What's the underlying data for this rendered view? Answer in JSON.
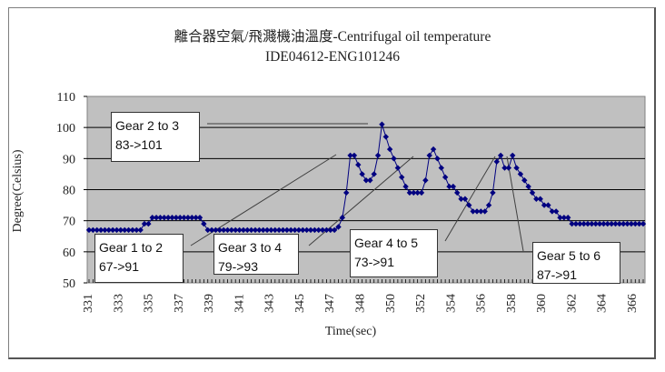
{
  "chart_data": {
    "type": "line",
    "title": "離合器空氣/飛濺機油溫度-Centrifugal oil temperature",
    "subtitle": "IDE04612-ENG101246",
    "xlabel": "Time(sec)",
    "ylabel": "Degree(Celsius)",
    "ylim": [
      50,
      110
    ],
    "yticks": [
      50,
      60,
      70,
      80,
      90,
      100,
      110
    ],
    "xtick_labels": [
      "331",
      "333",
      "335",
      "337",
      "339",
      "341",
      "343",
      "345",
      "347",
      "348",
      "350",
      "352",
      "354",
      "356",
      "358",
      "360",
      "362",
      "364",
      "366"
    ],
    "grid": true,
    "legend": "none",
    "plot_background": "#c0c0c0",
    "series_color": "#000080",
    "series": [
      {
        "name": "Centrifugal oil temperature",
        "values": [
          67,
          67,
          67,
          67,
          67,
          67,
          67,
          67,
          67,
          67,
          67,
          67,
          67,
          67,
          69,
          69,
          71,
          71,
          71,
          71,
          71,
          71,
          71,
          71,
          71,
          71,
          71,
          71,
          71,
          69,
          67,
          67,
          67,
          67,
          67,
          67,
          67,
          67,
          67,
          67,
          67,
          67,
          67,
          67,
          67,
          67,
          67,
          67,
          67,
          67,
          67,
          67,
          67,
          67,
          67,
          67,
          67,
          67,
          67,
          67,
          67,
          67,
          67,
          68,
          71,
          79,
          91,
          91,
          88,
          85,
          83,
          83,
          85,
          91,
          101,
          97,
          93,
          90,
          87,
          84,
          81,
          79,
          79,
          79,
          79,
          83,
          91,
          93,
          90,
          87,
          84,
          81,
          81,
          79,
          77,
          77,
          75,
          73,
          73,
          73,
          73,
          75,
          79,
          89,
          91,
          87,
          87,
          91,
          87,
          85,
          83,
          81,
          79,
          77,
          77,
          75,
          75,
          73,
          73,
          71,
          71,
          71,
          69,
          69,
          69,
          69,
          69,
          69,
          69,
          69,
          69,
          69,
          69,
          69,
          69,
          69,
          69,
          69,
          69,
          69,
          69
        ]
      }
    ],
    "annotations": [
      {
        "label": "Gear 1 to 2",
        "value": "67->91"
      },
      {
        "label": "Gear 2 to 3",
        "value": "83->101"
      },
      {
        "label": "Gear 3 to 4",
        "value": "79->93"
      },
      {
        "label": "Gear 4 to 5",
        "value": "73->91"
      },
      {
        "label": "Gear 5 to 6",
        "value": "87->91"
      }
    ]
  }
}
